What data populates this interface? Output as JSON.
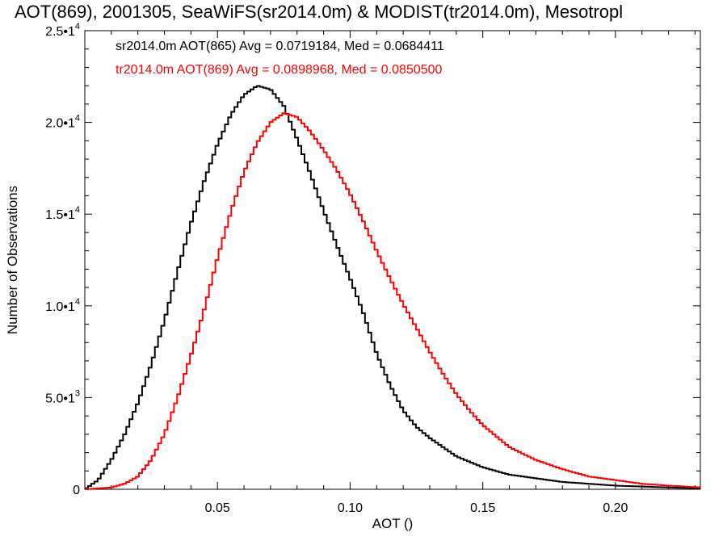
{
  "chart_data": {
    "type": "line",
    "title": "AOT(869), 2001305, SeaWiFS(sr2014.0m) & MODIST(tr2014.0m), Mesotropl",
    "xlabel": "AOT ()",
    "ylabel": "Number of Observations",
    "xlim": [
      0.0,
      0.232
    ],
    "ylim": [
      0,
      25000
    ],
    "x_ticks": [
      {
        "value": 0.05,
        "label": "0.05"
      },
      {
        "value": 0.1,
        "label": "0.10"
      },
      {
        "value": 0.15,
        "label": "0.15"
      },
      {
        "value": 0.2,
        "label": "0.20"
      }
    ],
    "y_ticks": [
      {
        "value": 0,
        "mant": "0",
        "exp": ""
      },
      {
        "value": 5000,
        "mant": "5.0•1",
        "exp": "3"
      },
      {
        "value": 10000,
        "mant": "1.0•1",
        "exp": "4"
      },
      {
        "value": 15000,
        "mant": "1.5•1",
        "exp": "4"
      },
      {
        "value": 20000,
        "mant": "2.0•1",
        "exp": "4"
      },
      {
        "value": 25000,
        "mant": "2.5•1",
        "exp": "4"
      }
    ],
    "grid": false,
    "legend": [
      {
        "text": "sr2014.0m AOT(865) Avg = 0.0719184, Med = 0.0684411",
        "color": "#000000"
      },
      {
        "text": "tr2014.0m AOT(869) Avg = 0.0898968, Med = 0.0850500",
        "color": "#ff0000"
      }
    ],
    "series": [
      {
        "color": "#000000",
        "x": [
          0.0,
          0.005,
          0.01,
          0.015,
          0.02,
          0.025,
          0.03,
          0.035,
          0.04,
          0.045,
          0.05,
          0.055,
          0.06,
          0.065,
          0.07,
          0.075,
          0.08,
          0.085,
          0.09,
          0.095,
          0.1,
          0.105,
          0.11,
          0.115,
          0.12,
          0.125,
          0.13,
          0.135,
          0.14,
          0.145,
          0.15,
          0.16,
          0.17,
          0.18,
          0.19,
          0.2,
          0.21,
          0.22,
          0.232
        ],
        "values": [
          0,
          500,
          1600,
          3000,
          4700,
          6800,
          9200,
          11900,
          14500,
          16800,
          18800,
          20400,
          21500,
          22000,
          21800,
          20900,
          19100,
          17200,
          15200,
          13300,
          11500,
          9600,
          7400,
          5700,
          4300,
          3400,
          2800,
          2300,
          1800,
          1500,
          1200,
          800,
          600,
          400,
          300,
          200,
          150,
          100,
          50
        ]
      },
      {
        "color": "#ff0000",
        "x": [
          0.0,
          0.005,
          0.01,
          0.015,
          0.02,
          0.025,
          0.03,
          0.035,
          0.04,
          0.045,
          0.05,
          0.055,
          0.06,
          0.065,
          0.07,
          0.075,
          0.08,
          0.085,
          0.09,
          0.095,
          0.1,
          0.105,
          0.11,
          0.115,
          0.12,
          0.125,
          0.13,
          0.135,
          0.14,
          0.145,
          0.15,
          0.155,
          0.16,
          0.17,
          0.18,
          0.19,
          0.2,
          0.21,
          0.22,
          0.232
        ],
        "values": [
          0,
          50,
          100,
          300,
          700,
          1600,
          3000,
          5000,
          7300,
          9800,
          12600,
          15100,
          17300,
          18900,
          20000,
          20500,
          20300,
          19500,
          18500,
          17400,
          16100,
          14600,
          13000,
          11500,
          10100,
          8800,
          7500,
          6300,
          5200,
          4300,
          3500,
          2900,
          2300,
          1600,
          1100,
          700,
          500,
          300,
          200,
          100
        ]
      }
    ]
  }
}
